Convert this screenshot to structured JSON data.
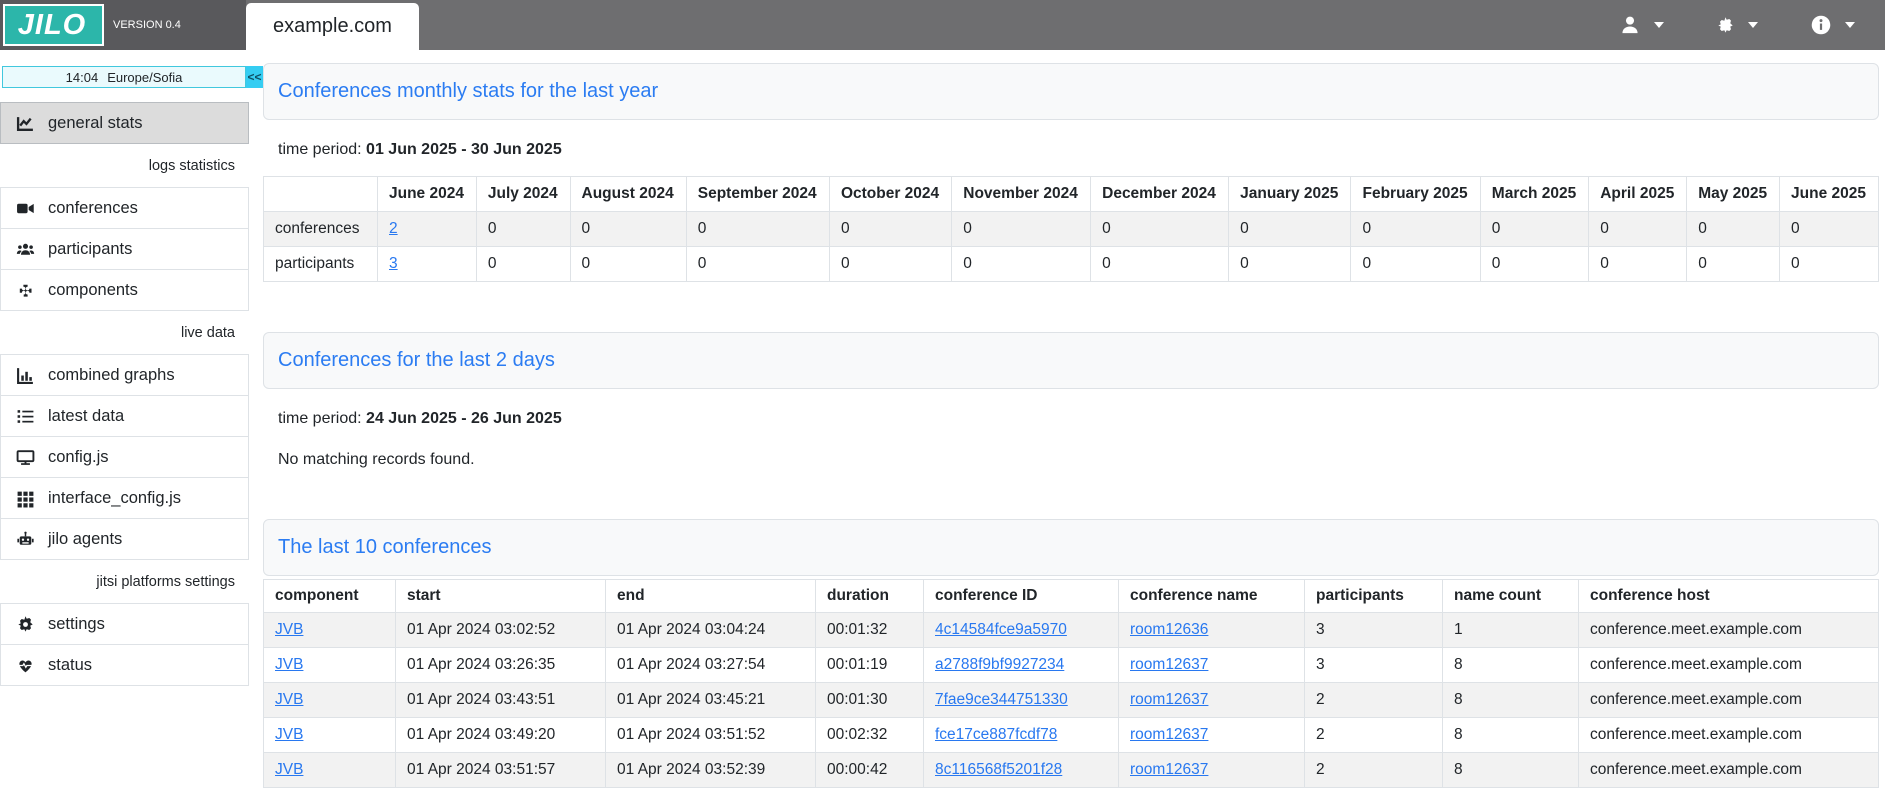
{
  "header": {
    "logo_text": "JILO",
    "version": "VERSION 0.4",
    "active_tab": "example.com",
    "menus": [
      {
        "name": "user-menu",
        "icon": "user-icon"
      },
      {
        "name": "settings-menu",
        "icon": "gear-icon"
      },
      {
        "name": "info-menu",
        "icon": "info-icon"
      }
    ]
  },
  "sidebar": {
    "clock": {
      "time": "14:04",
      "timezone": "Europe/Sofia",
      "collapse_label": "<<"
    },
    "sections": [
      {
        "label": "",
        "items": [
          {
            "id": "general-stats",
            "label": "general stats",
            "icon": "chart-line-icon",
            "active": true
          }
        ]
      },
      {
        "label": "logs statistics",
        "items": [
          {
            "id": "conferences",
            "label": "conferences",
            "icon": "video-camera-icon"
          },
          {
            "id": "participants",
            "label": "participants",
            "icon": "users-icon"
          },
          {
            "id": "components",
            "label": "components",
            "icon": "puzzle-icon"
          }
        ]
      },
      {
        "label": "live data",
        "items": [
          {
            "id": "combined-graphs",
            "label": "combined graphs",
            "icon": "chart-column-icon"
          },
          {
            "id": "latest-data",
            "label": "latest data",
            "icon": "list-icon"
          },
          {
            "id": "config-js",
            "label": "config.js",
            "icon": "desktop-icon"
          },
          {
            "id": "interface-config-js",
            "label": "interface_config.js",
            "icon": "grid-icon"
          },
          {
            "id": "jilo-agents",
            "label": "jilo agents",
            "icon": "robot-icon"
          }
        ]
      },
      {
        "label": "jitsi platforms settings",
        "items": [
          {
            "id": "settings",
            "label": "settings",
            "icon": "gear-icon"
          },
          {
            "id": "status",
            "label": "status",
            "icon": "heart-pulse-icon"
          }
        ]
      }
    ]
  },
  "monthly_stats": {
    "title": "Conferences monthly stats for the last year",
    "time_period_label": "time period:",
    "time_period": "01 Jun 2025 - 30 Jun 2025",
    "columns": [
      "",
      "June 2024",
      "July 2024",
      "August 2024",
      "September 2024",
      "October 2024",
      "November 2024",
      "December 2024",
      "January 2025",
      "February 2025",
      "March 2025",
      "April 2025",
      "May 2025",
      "June 2025"
    ],
    "link_columns": [
      1
    ],
    "rows": [
      [
        "conferences",
        "2",
        "0",
        "0",
        "0",
        "0",
        "0",
        "0",
        "0",
        "0",
        "0",
        "0",
        "0",
        "0"
      ],
      [
        "participants",
        "3",
        "0",
        "0",
        "0",
        "0",
        "0",
        "0",
        "0",
        "0",
        "0",
        "0",
        "0",
        "0"
      ]
    ]
  },
  "last_two_days": {
    "title": "Conferences for the last 2 days",
    "time_period_label": "time period:",
    "time_period": "24 Jun 2025 - 26 Jun 2025",
    "empty_message": "No matching records found."
  },
  "last_ten": {
    "title": "The last 10 conferences",
    "columns": [
      "component",
      "start",
      "end",
      "duration",
      "conference ID",
      "conference name",
      "participants",
      "name count",
      "conference host"
    ],
    "link_columns": [
      0,
      4,
      5
    ],
    "rows": [
      [
        "JVB",
        "01 Apr 2024 03:02:52",
        "01 Apr 2024 03:04:24",
        "00:01:32",
        "4c14584fce9a5970",
        "room12636",
        "3",
        "1",
        "conference.meet.example.com"
      ],
      [
        "JVB",
        "01 Apr 2024 03:26:35",
        "01 Apr 2024 03:27:54",
        "00:01:19",
        "a2788f9bf9927234",
        "room12637",
        "3",
        "8",
        "conference.meet.example.com"
      ],
      [
        "JVB",
        "01 Apr 2024 03:43:51",
        "01 Apr 2024 03:45:21",
        "00:01:30",
        "7fae9ce344751330",
        "room12637",
        "2",
        "8",
        "conference.meet.example.com"
      ],
      [
        "JVB",
        "01 Apr 2024 03:49:20",
        "01 Apr 2024 03:51:52",
        "00:02:32",
        "fce17ce887fcdf78",
        "room12637",
        "2",
        "8",
        "conference.meet.example.com"
      ],
      [
        "JVB",
        "01 Apr 2024 03:51:57",
        "01 Apr 2024 03:52:39",
        "00:00:42",
        "8c116568f5201f28",
        "room12637",
        "2",
        "8",
        "conference.meet.example.com"
      ]
    ]
  },
  "colors": {
    "topbar_gray": "#6e6e70",
    "brand_zone_gray": "#59595c",
    "logo_teal": "#2cb6aa",
    "title_blue": "#2b7cf2",
    "link_blue": "#2878f0",
    "clock_cyan": "#35cdf2",
    "active_item_gray": "#dcdcdc",
    "stripe_gray": "#f2f2f2",
    "border_gray": "#dee2e6"
  }
}
